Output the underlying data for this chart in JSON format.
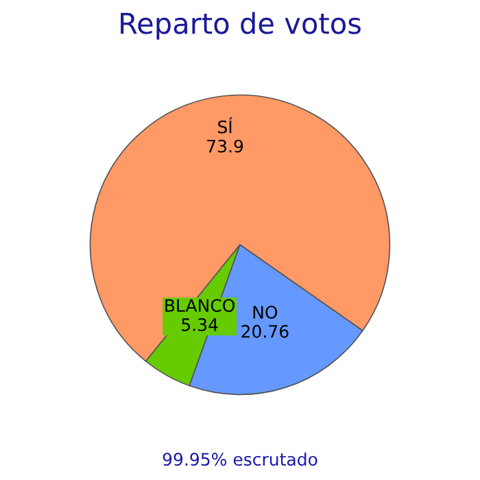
{
  "chart_data": {
    "type": "pie",
    "title": "Reparto de votos",
    "categories": [
      "SÍ",
      "BLANCO",
      "NO"
    ],
    "values": [
      73.9,
      5.34,
      20.76
    ],
    "colors": [
      "#ff9966",
      "#66cc00",
      "#6699ff"
    ],
    "data_labels": true,
    "legend": false,
    "annotations": [
      "99.95% escrutado"
    ]
  }
}
